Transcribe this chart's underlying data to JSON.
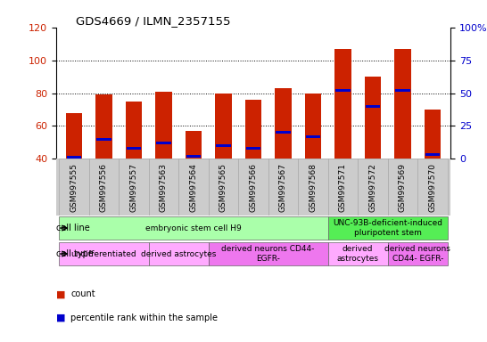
{
  "title": "GDS4669 / ILMN_2357155",
  "samples": [
    "GSM997555",
    "GSM997556",
    "GSM997557",
    "GSM997563",
    "GSM997564",
    "GSM997565",
    "GSM997566",
    "GSM997567",
    "GSM997568",
    "GSM997571",
    "GSM997572",
    "GSM997569",
    "GSM997570"
  ],
  "counts": [
    68,
    79,
    75,
    81,
    57,
    80,
    76,
    83,
    80,
    107,
    90,
    107,
    70
  ],
  "percentile": [
    1,
    15,
    8,
    12,
    2,
    10,
    8,
    20,
    17,
    52,
    40,
    52,
    3
  ],
  "ylim_left": [
    40,
    120
  ],
  "ylim_right": [
    0,
    100
  ],
  "yticks_left": [
    40,
    60,
    80,
    100,
    120
  ],
  "yticks_right": [
    0,
    25,
    50,
    75,
    100
  ],
  "yticklabels_right": [
    "0",
    "25",
    "50",
    "75",
    "100%"
  ],
  "bar_color": "#cc2200",
  "pct_color": "#0000cc",
  "grid_color": "#000000",
  "bg_color": "#ffffff",
  "xticklabel_bg": "#cccccc",
  "cell_line_groups": [
    {
      "label": "embryonic stem cell H9",
      "start": 0,
      "end": 8,
      "color": "#aaffaa"
    },
    {
      "label": "UNC-93B-deficient-induced\npluripotent stem",
      "start": 9,
      "end": 12,
      "color": "#55ee55"
    }
  ],
  "cell_type_groups": [
    {
      "label": "undifferentiated",
      "start": 0,
      "end": 2,
      "color": "#ffaaff"
    },
    {
      "label": "derived astrocytes",
      "start": 3,
      "end": 4,
      "color": "#ffaaff"
    },
    {
      "label": "derived neurons CD44-\nEGFR-",
      "start": 5,
      "end": 8,
      "color": "#ee77ee"
    },
    {
      "label": "derived\nastrocytes",
      "start": 9,
      "end": 10,
      "color": "#ffaaff"
    },
    {
      "label": "derived neurons\nCD44- EGFR-",
      "start": 11,
      "end": 12,
      "color": "#ee77ee"
    }
  ]
}
